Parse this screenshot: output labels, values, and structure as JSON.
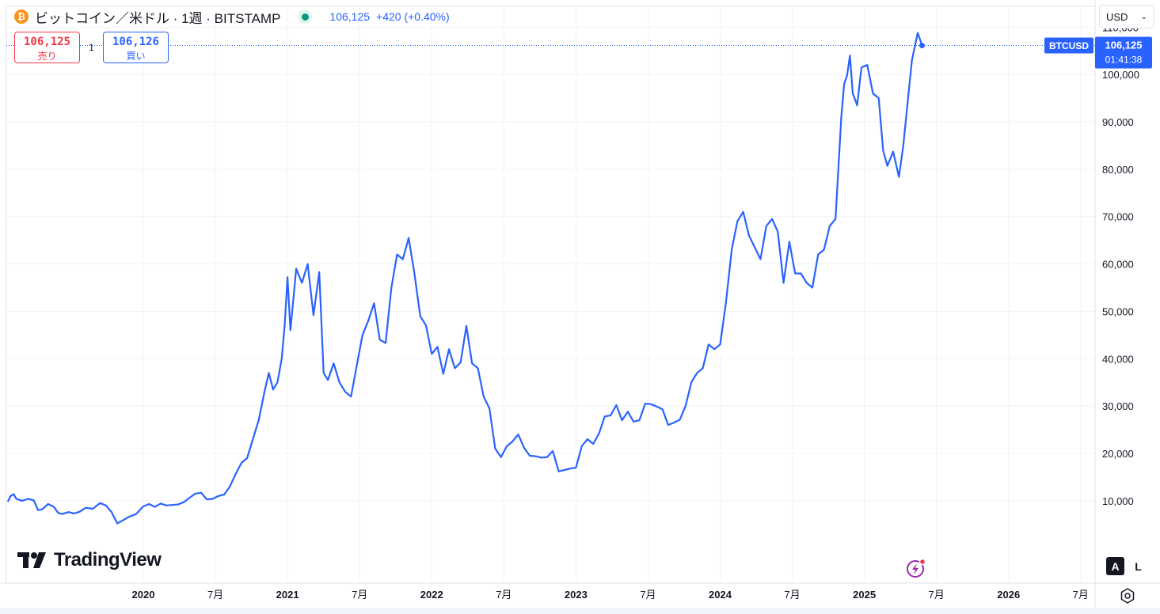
{
  "header": {
    "title": "ビットコイン／米ドル · 1週 · BITSTAMP",
    "coin_icon": "bitcoin-icon",
    "coin_symbol": "₿",
    "last_price": "106,125",
    "change": "+420 (+0.40%)",
    "status_color": "#089981"
  },
  "trade": {
    "sell_value": "106,125",
    "sell_label": "売り",
    "spread": "1",
    "buy_value": "106,126",
    "buy_label": "買い"
  },
  "currency": {
    "selected": "USD"
  },
  "brand": {
    "name": "TradingView"
  },
  "scale_buttons": {
    "auto": "A",
    "log": "L"
  },
  "price_label": {
    "symbol": "BTCUSD",
    "price": "106,125",
    "countdown": "01:41:38"
  },
  "chart_data": {
    "type": "line",
    "x_ticks": [
      "2020",
      "7月",
      "2021",
      "7月",
      "2022",
      "7月",
      "2023",
      "7月",
      "2024",
      "7月",
      "2025",
      "7月",
      "2026",
      "7月"
    ],
    "x_tick_dates": [
      2020.0,
      2020.5,
      2021.0,
      2021.5,
      2022.0,
      2022.5,
      2023.0,
      2023.5,
      2024.0,
      2024.5,
      2025.0,
      2025.5,
      2026.0,
      2026.5
    ],
    "x_range": [
      2019.05,
      2026.6
    ],
    "y_range": [
      -7400,
      114400
    ],
    "y_ticks": [
      10000,
      20000,
      30000,
      40000,
      50000,
      60000,
      70000,
      80000,
      90000,
      100000,
      110000
    ],
    "y_tick_labels": [
      "10,000",
      "20,000",
      "30,000",
      "40,000",
      "50,000",
      "60,000",
      "70,000",
      "80,000",
      "90,000",
      "100,000",
      "110,000"
    ],
    "line_color": "#2962ff",
    "grid": true,
    "series": [
      {
        "points": [
          [
            2019.06,
            9800
          ],
          [
            2019.08,
            11000
          ],
          [
            2019.1,
            11400
          ],
          [
            2019.12,
            10400
          ],
          [
            2019.16,
            10000
          ],
          [
            2019.2,
            10400
          ],
          [
            2019.24,
            10100
          ],
          [
            2019.27,
            8000
          ],
          [
            2019.3,
            8200
          ],
          [
            2019.34,
            9300
          ],
          [
            2019.38,
            8700
          ],
          [
            2019.41,
            7400
          ],
          [
            2019.44,
            7200
          ],
          [
            2019.48,
            7600
          ],
          [
            2019.52,
            7300
          ],
          [
            2019.56,
            7700
          ],
          [
            2019.6,
            8500
          ],
          [
            2019.65,
            8300
          ],
          [
            2019.7,
            9500
          ],
          [
            2019.74,
            9000
          ],
          [
            2019.78,
            7600
          ],
          [
            2019.82,
            5200
          ],
          [
            2019.86,
            5900
          ],
          [
            2019.9,
            6600
          ],
          [
            2019.95,
            7200
          ],
          [
            2020.0,
            8800
          ],
          [
            2020.04,
            9300
          ],
          [
            2020.08,
            8700
          ],
          [
            2020.12,
            9400
          ],
          [
            2020.16,
            9000
          ],
          [
            2020.2,
            9100
          ],
          [
            2020.24,
            9200
          ],
          [
            2020.28,
            9700
          ],
          [
            2020.32,
            10600
          ],
          [
            2020.36,
            11500
          ],
          [
            2020.4,
            11700
          ],
          [
            2020.44,
            10300
          ],
          [
            2020.48,
            10400
          ],
          [
            2020.52,
            11000
          ],
          [
            2020.56,
            11300
          ],
          [
            2020.6,
            13000
          ],
          [
            2020.64,
            15600
          ],
          [
            2020.68,
            18000
          ],
          [
            2020.72,
            19000
          ],
          [
            2020.76,
            23000
          ],
          [
            2020.8,
            27000
          ],
          [
            2020.84,
            33000
          ],
          [
            2020.87,
            37000
          ],
          [
            2020.9,
            33500
          ],
          [
            2020.93,
            35000
          ],
          [
            2020.96,
            40000
          ],
          [
            2020.98,
            47000
          ],
          [
            2021.0,
            57200
          ],
          [
            2021.02,
            46000
          ],
          [
            2021.06,
            59000
          ],
          [
            2021.1,
            56000
          ],
          [
            2021.14,
            60000
          ],
          [
            2021.18,
            49200
          ],
          [
            2021.22,
            58300
          ],
          [
            2021.25,
            37000
          ],
          [
            2021.28,
            35500
          ],
          [
            2021.32,
            39000
          ],
          [
            2021.36,
            35000
          ],
          [
            2021.4,
            33000
          ],
          [
            2021.44,
            32000
          ],
          [
            2021.48,
            38500
          ],
          [
            2021.52,
            45000
          ],
          [
            2021.56,
            48000
          ],
          [
            2021.6,
            51700
          ],
          [
            2021.64,
            44000
          ],
          [
            2021.68,
            43300
          ],
          [
            2021.72,
            55000
          ],
          [
            2021.76,
            62000
          ],
          [
            2021.8,
            61000
          ],
          [
            2021.84,
            65500
          ],
          [
            2021.88,
            58000
          ],
          [
            2021.92,
            49000
          ],
          [
            2021.96,
            47000
          ],
          [
            2022.0,
            41000
          ],
          [
            2022.04,
            42500
          ],
          [
            2022.08,
            36800
          ],
          [
            2022.12,
            42000
          ],
          [
            2022.16,
            38000
          ],
          [
            2022.2,
            39200
          ],
          [
            2022.24,
            46900
          ],
          [
            2022.28,
            39000
          ],
          [
            2022.32,
            38000
          ],
          [
            2022.36,
            32000
          ],
          [
            2022.4,
            29500
          ],
          [
            2022.44,
            21000
          ],
          [
            2022.48,
            19200
          ],
          [
            2022.52,
            21500
          ],
          [
            2022.56,
            22500
          ],
          [
            2022.6,
            24000
          ],
          [
            2022.64,
            21200
          ],
          [
            2022.68,
            19500
          ],
          [
            2022.72,
            19400
          ],
          [
            2022.76,
            19100
          ],
          [
            2022.8,
            19200
          ],
          [
            2022.84,
            20500
          ],
          [
            2022.88,
            16200
          ],
          [
            2022.92,
            16500
          ],
          [
            2022.96,
            16800
          ],
          [
            2023.0,
            17000
          ],
          [
            2023.04,
            21500
          ],
          [
            2023.08,
            23000
          ],
          [
            2023.12,
            22000
          ],
          [
            2023.16,
            24200
          ],
          [
            2023.2,
            27800
          ],
          [
            2023.24,
            28000
          ],
          [
            2023.28,
            30200
          ],
          [
            2023.32,
            27000
          ],
          [
            2023.36,
            28800
          ],
          [
            2023.4,
            26700
          ],
          [
            2023.44,
            27000
          ],
          [
            2023.48,
            30500
          ],
          [
            2023.52,
            30400
          ],
          [
            2023.56,
            29900
          ],
          [
            2023.6,
            29300
          ],
          [
            2023.64,
            26000
          ],
          [
            2023.68,
            26500
          ],
          [
            2023.72,
            27100
          ],
          [
            2023.76,
            30000
          ],
          [
            2023.8,
            35000
          ],
          [
            2023.84,
            37000
          ],
          [
            2023.88,
            38000
          ],
          [
            2023.92,
            43000
          ],
          [
            2023.96,
            42000
          ],
          [
            2024.0,
            43000
          ],
          [
            2024.04,
            51800
          ],
          [
            2024.08,
            63000
          ],
          [
            2024.12,
            69000
          ],
          [
            2024.16,
            71000
          ],
          [
            2024.2,
            66000
          ],
          [
            2024.24,
            63500
          ],
          [
            2024.28,
            61000
          ],
          [
            2024.32,
            68000
          ],
          [
            2024.36,
            69500
          ],
          [
            2024.4,
            66800
          ],
          [
            2024.44,
            56000
          ],
          [
            2024.48,
            64700
          ],
          [
            2024.52,
            58000
          ],
          [
            2024.56,
            58000
          ],
          [
            2024.6,
            56000
          ],
          [
            2024.64,
            55000
          ],
          [
            2024.68,
            62000
          ],
          [
            2024.72,
            63000
          ],
          [
            2024.76,
            68000
          ],
          [
            2024.8,
            69500
          ],
          [
            2024.84,
            91000
          ],
          [
            2024.86,
            98000
          ],
          [
            2024.88,
            99800
          ],
          [
            2024.9,
            104000
          ],
          [
            2024.92,
            96000
          ],
          [
            2024.95,
            93500
          ],
          [
            2024.98,
            101500
          ],
          [
            2025.02,
            102000
          ],
          [
            2025.06,
            96000
          ],
          [
            2025.1,
            95000
          ],
          [
            2025.13,
            84000
          ],
          [
            2025.16,
            80700
          ],
          [
            2025.2,
            83700
          ],
          [
            2025.24,
            78400
          ],
          [
            2025.27,
            85000
          ],
          [
            2025.3,
            94000
          ],
          [
            2025.33,
            103000
          ],
          [
            2025.37,
            108800
          ],
          [
            2025.4,
            106125
          ]
        ]
      }
    ],
    "last_value": 106125
  }
}
